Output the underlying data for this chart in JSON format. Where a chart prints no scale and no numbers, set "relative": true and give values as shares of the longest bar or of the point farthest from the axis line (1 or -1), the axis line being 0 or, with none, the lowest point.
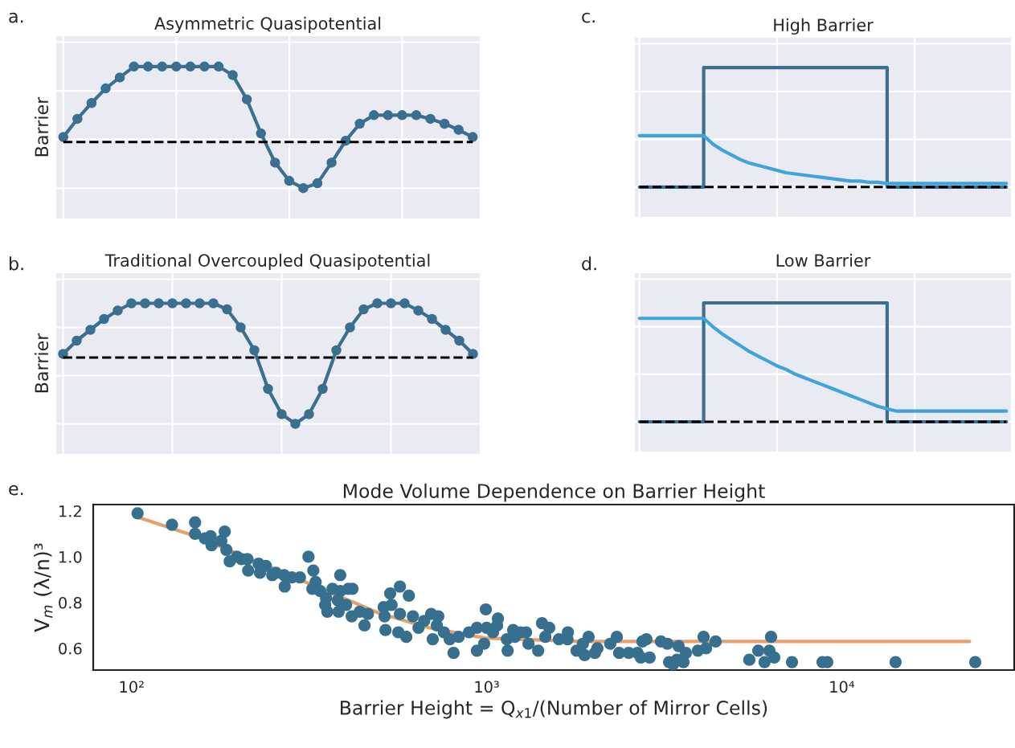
{
  "chart_data": [
    {
      "type": "line",
      "title": "Asymmetric Quasipotential",
      "ylabel": "Barrier",
      "annotations": [
        "a."
      ],
      "relative": true,
      "grid": true,
      "tick_labels": false,
      "marker": "circle",
      "categories": [
        null,
        null,
        null,
        null,
        null,
        null,
        null,
        null,
        null,
        null,
        null,
        null,
        null,
        null,
        null,
        null,
        null,
        null,
        null,
        null,
        null,
        null,
        null,
        null,
        null,
        null,
        null,
        null,
        null,
        null
      ],
      "series": [
        {
          "color": "#3a6f8f",
          "values": [
            0.42,
            0.57,
            0.7,
            0.82,
            0.91,
            1,
            1,
            1,
            1,
            1,
            1,
            1,
            0.93,
            0.73,
            0.45,
            0.21,
            0.06,
            0,
            0.04,
            0.21,
            0.39,
            0.53,
            0.6,
            0.6,
            0.6,
            0.6,
            0.57,
            0.53,
            0.48,
            0.42
          ]
        }
      ],
      "ref_lines": [
        {
          "axis": "y",
          "value": 0.38,
          "color": "#000000",
          "line_style": "dashed"
        }
      ]
    },
    {
      "type": "line",
      "title": "Traditional Overcoupled Quasipotential",
      "ylabel": "Barrier",
      "annotations": [
        "b."
      ],
      "relative": true,
      "grid": true,
      "tick_labels": false,
      "marker": "circle",
      "categories": [
        null,
        null,
        null,
        null,
        null,
        null,
        null,
        null,
        null,
        null,
        null,
        null,
        null,
        null,
        null,
        null,
        null,
        null,
        null,
        null,
        null,
        null,
        null,
        null,
        null,
        null,
        null,
        null,
        null,
        null,
        null
      ],
      "series": [
        {
          "color": "#3a6f8f",
          "values": [
            0.58,
            0.69,
            0.78,
            0.87,
            0.94,
            1,
            1,
            1,
            1,
            1,
            1,
            1,
            0.95,
            0.8,
            0.61,
            0.29,
            0.08,
            0,
            0.08,
            0.29,
            0.61,
            0.8,
            0.95,
            1,
            1,
            1,
            0.94,
            0.87,
            0.78,
            0.69,
            0.58
          ]
        }
      ],
      "ref_lines": [
        {
          "axis": "y",
          "value": 0.55,
          "color": "#000000",
          "line_style": "dashed"
        }
      ]
    },
    {
      "type": "line",
      "title": "High Barrier",
      "annotations": [
        "c."
      ],
      "relative": true,
      "grid": true,
      "tick_labels": false,
      "categories": [
        null,
        null,
        null,
        null,
        null,
        null,
        null,
        null,
        null,
        null,
        null,
        null,
        null,
        null,
        null,
        null,
        null,
        null,
        null,
        null,
        null,
        null,
        null,
        null,
        null,
        null,
        null,
        null,
        null,
        null,
        null,
        null,
        null,
        null,
        null,
        null,
        null,
        null,
        null,
        null,
        null
      ],
      "series": [
        {
          "type": "step",
          "color": "#3a6f8f",
          "values": [
            0,
            0,
            0,
            0,
            0,
            0,
            0,
            1,
            1,
            1,
            1,
            1,
            1,
            1,
            1,
            1,
            1,
            1,
            1,
            1,
            1,
            1,
            1,
            1,
            1,
            1,
            1,
            0,
            0,
            0,
            0,
            0,
            0,
            0,
            0,
            0,
            0,
            0,
            0,
            0,
            0
          ]
        },
        {
          "type": "line",
          "color": "#3ea4dc",
          "values": [
            0.43,
            0.43,
            0.43,
            0.43,
            0.43,
            0.43,
            0.43,
            0.43,
            0.36,
            0.31,
            0.27,
            0.23,
            0.2,
            0.18,
            0.16,
            0.14,
            0.12,
            0.11,
            0.1,
            0.09,
            0.08,
            0.07,
            0.06,
            0.05,
            0.05,
            0.04,
            0.04,
            0.03,
            0.03,
            0.03,
            0.03,
            0.03,
            0.03,
            0.03,
            0.03,
            0.03,
            0.03,
            0.03,
            0.03,
            0.03,
            0.03
          ]
        }
      ],
      "ref_lines": [
        {
          "axis": "y",
          "value": 0,
          "color": "#000000",
          "line_style": "dashed"
        }
      ]
    },
    {
      "type": "line",
      "title": "Low Barrier",
      "annotations": [
        "d."
      ],
      "relative": true,
      "grid": true,
      "tick_labels": false,
      "categories": [
        null,
        null,
        null,
        null,
        null,
        null,
        null,
        null,
        null,
        null,
        null,
        null,
        null,
        null,
        null,
        null,
        null,
        null,
        null,
        null,
        null,
        null,
        null,
        null,
        null,
        null,
        null,
        null,
        null,
        null,
        null,
        null,
        null,
        null,
        null,
        null,
        null,
        null,
        null,
        null,
        null
      ],
      "series": [
        {
          "type": "step",
          "color": "#3a6f8f",
          "values": [
            0,
            0,
            0,
            0,
            0,
            0,
            0,
            1,
            1,
            1,
            1,
            1,
            1,
            1,
            1,
            1,
            1,
            1,
            1,
            1,
            1,
            1,
            1,
            1,
            1,
            1,
            1,
            0,
            0,
            0,
            0,
            0,
            0,
            0,
            0,
            0,
            0,
            0,
            0,
            0,
            0
          ]
        },
        {
          "type": "line",
          "color": "#3ea4dc",
          "values": [
            0.87,
            0.87,
            0.87,
            0.87,
            0.87,
            0.87,
            0.87,
            0.87,
            0.8,
            0.74,
            0.69,
            0.64,
            0.59,
            0.55,
            0.51,
            0.47,
            0.44,
            0.4,
            0.37,
            0.34,
            0.31,
            0.28,
            0.25,
            0.22,
            0.19,
            0.16,
            0.13,
            0.11,
            0.09,
            0.09,
            0.09,
            0.09,
            0.09,
            0.09,
            0.09,
            0.09,
            0.09,
            0.09,
            0.09,
            0.09,
            0.09
          ]
        }
      ],
      "ref_lines": [
        {
          "axis": "y",
          "value": 0,
          "color": "#000000",
          "line_style": "dashed"
        }
      ]
    },
    {
      "type": "scatter",
      "title": "Mode Volume Dependence on Barrier Height",
      "xlabel": "Barrier Height = Q$_{x1}$/(Number of Mirror Cells)",
      "ylabel": "V$_{m}$ (λ/n)³",
      "annotations": [
        "e."
      ],
      "grid": false,
      "log": "x",
      "marker": "circle",
      "xlim": [
        78,
        30600
      ],
      "ylim": [
        0.505,
        1.228
      ],
      "xticks": [
        {
          "value": 100,
          "label": "10²"
        },
        {
          "value": 1000,
          "label": "10³"
        },
        {
          "value": 10000,
          "label": "10⁴"
        }
      ],
      "yticks": [
        {
          "value": 0.6,
          "label": "0.6"
        },
        {
          "value": 0.8,
          "label": "0.8"
        },
        {
          "value": 1,
          "label": "1.0"
        },
        {
          "value": 1.2,
          "label": "1.2"
        }
      ],
      "series": [
        {
          "type": "line",
          "marker": "none",
          "color": "#e5a06c",
          "x": [
            103,
            151,
            298,
            495,
            687,
            989,
            1820,
            22900
          ],
          "values": [
            1.175,
            1.09,
            0.9,
            0.755,
            0.69,
            0.645,
            0.63,
            0.63
          ]
        },
        {
          "type": "scatter",
          "color": "#376f8f",
          "x": [
            104,
            130,
            151,
            151,
            161,
            167,
            168,
            183,
            179,
            185,
            189,
            198,
            204,
            212,
            213,
            228,
            230,
            239,
            249,
            255,
            269,
            270,
            283,
            298,
            315,
            325,
            323,
            330,
            340,
            353,
            351,
            356,
            368,
            387,
            387,
            381,
            383,
            408,
            419,
            402,
            417,
            439,
            453,
            463,
            535,
            570,
            604,
            513,
            540,
            516,
            519,
            570,
            564,
            594,
            620,
            643,
            667,
            698,
            731,
            724,
            705,
            758,
            787,
            807,
            834,
            892,
            939,
            939,
            984,
            995,
            1000,
            1042,
            1076,
            1070,
            1140,
            1146,
            1188,
            1200,
            1245,
            1291,
            1312,
            1397,
            1432,
            1501,
            1463,
            1598,
            1694,
            1690,
            1792,
            1888,
            1937,
            1867,
            2018,
            2051,
            2229,
            2326,
            2362,
            2513,
            2661,
            2718,
            2747,
            2818,
            2878,
            3097,
            3229,
            3265,
            3350,
            3436,
            3472,
            3584,
            3640,
            3934,
            4083,
            4148,
            4414,
            5492,
            6324,
            5821,
            6257,
            6062,
            6457,
            7244,
            8830,
            9105,
            14180,
            23770
          ],
          "values": [
            1.19,
            1.14,
            1.15,
            1.1,
            1.08,
            1.09,
            1.05,
            1.11,
            1.07,
            1.03,
            0.98,
            1.0,
            0.99,
            0.99,
            0.94,
            0.97,
            0.93,
            0.96,
            0.92,
            0.93,
            0.92,
            0.87,
            0.91,
            0.91,
            1.0,
            0.94,
            0.86,
            0.89,
            0.85,
            0.82,
            0.79,
            0.76,
            0.86,
            0.92,
            0.85,
            0.81,
            0.76,
            0.86,
            0.86,
            0.79,
            0.74,
            0.76,
            0.7,
            0.75,
            0.84,
            0.87,
            0.83,
            0.78,
            0.79,
            0.74,
            0.68,
            0.75,
            0.67,
            0.65,
            0.74,
            0.69,
            0.72,
            0.75,
            0.74,
            0.7,
            0.64,
            0.67,
            0.64,
            0.58,
            0.65,
            0.67,
            0.69,
            0.59,
            0.62,
            0.77,
            0.69,
            0.67,
            0.73,
            0.7,
            0.64,
            0.59,
            0.68,
            0.65,
            0.67,
            0.67,
            0.62,
            0.59,
            0.71,
            0.69,
            0.65,
            0.64,
            0.67,
            0.64,
            0.59,
            0.57,
            0.65,
            0.62,
            0.58,
            0.6,
            0.62,
            0.65,
            0.58,
            0.58,
            0.58,
            0.56,
            0.63,
            0.64,
            0.56,
            0.63,
            0.62,
            0.54,
            0.53,
            0.55,
            0.61,
            0.54,
            0.58,
            0.59,
            0.65,
            0.6,
            0.63,
            0.55,
            0.65,
            0.59,
            0.59,
            0.54,
            0.56,
            0.54,
            0.54,
            0.54,
            0.54,
            0.54
          ]
        }
      ]
    }
  ]
}
